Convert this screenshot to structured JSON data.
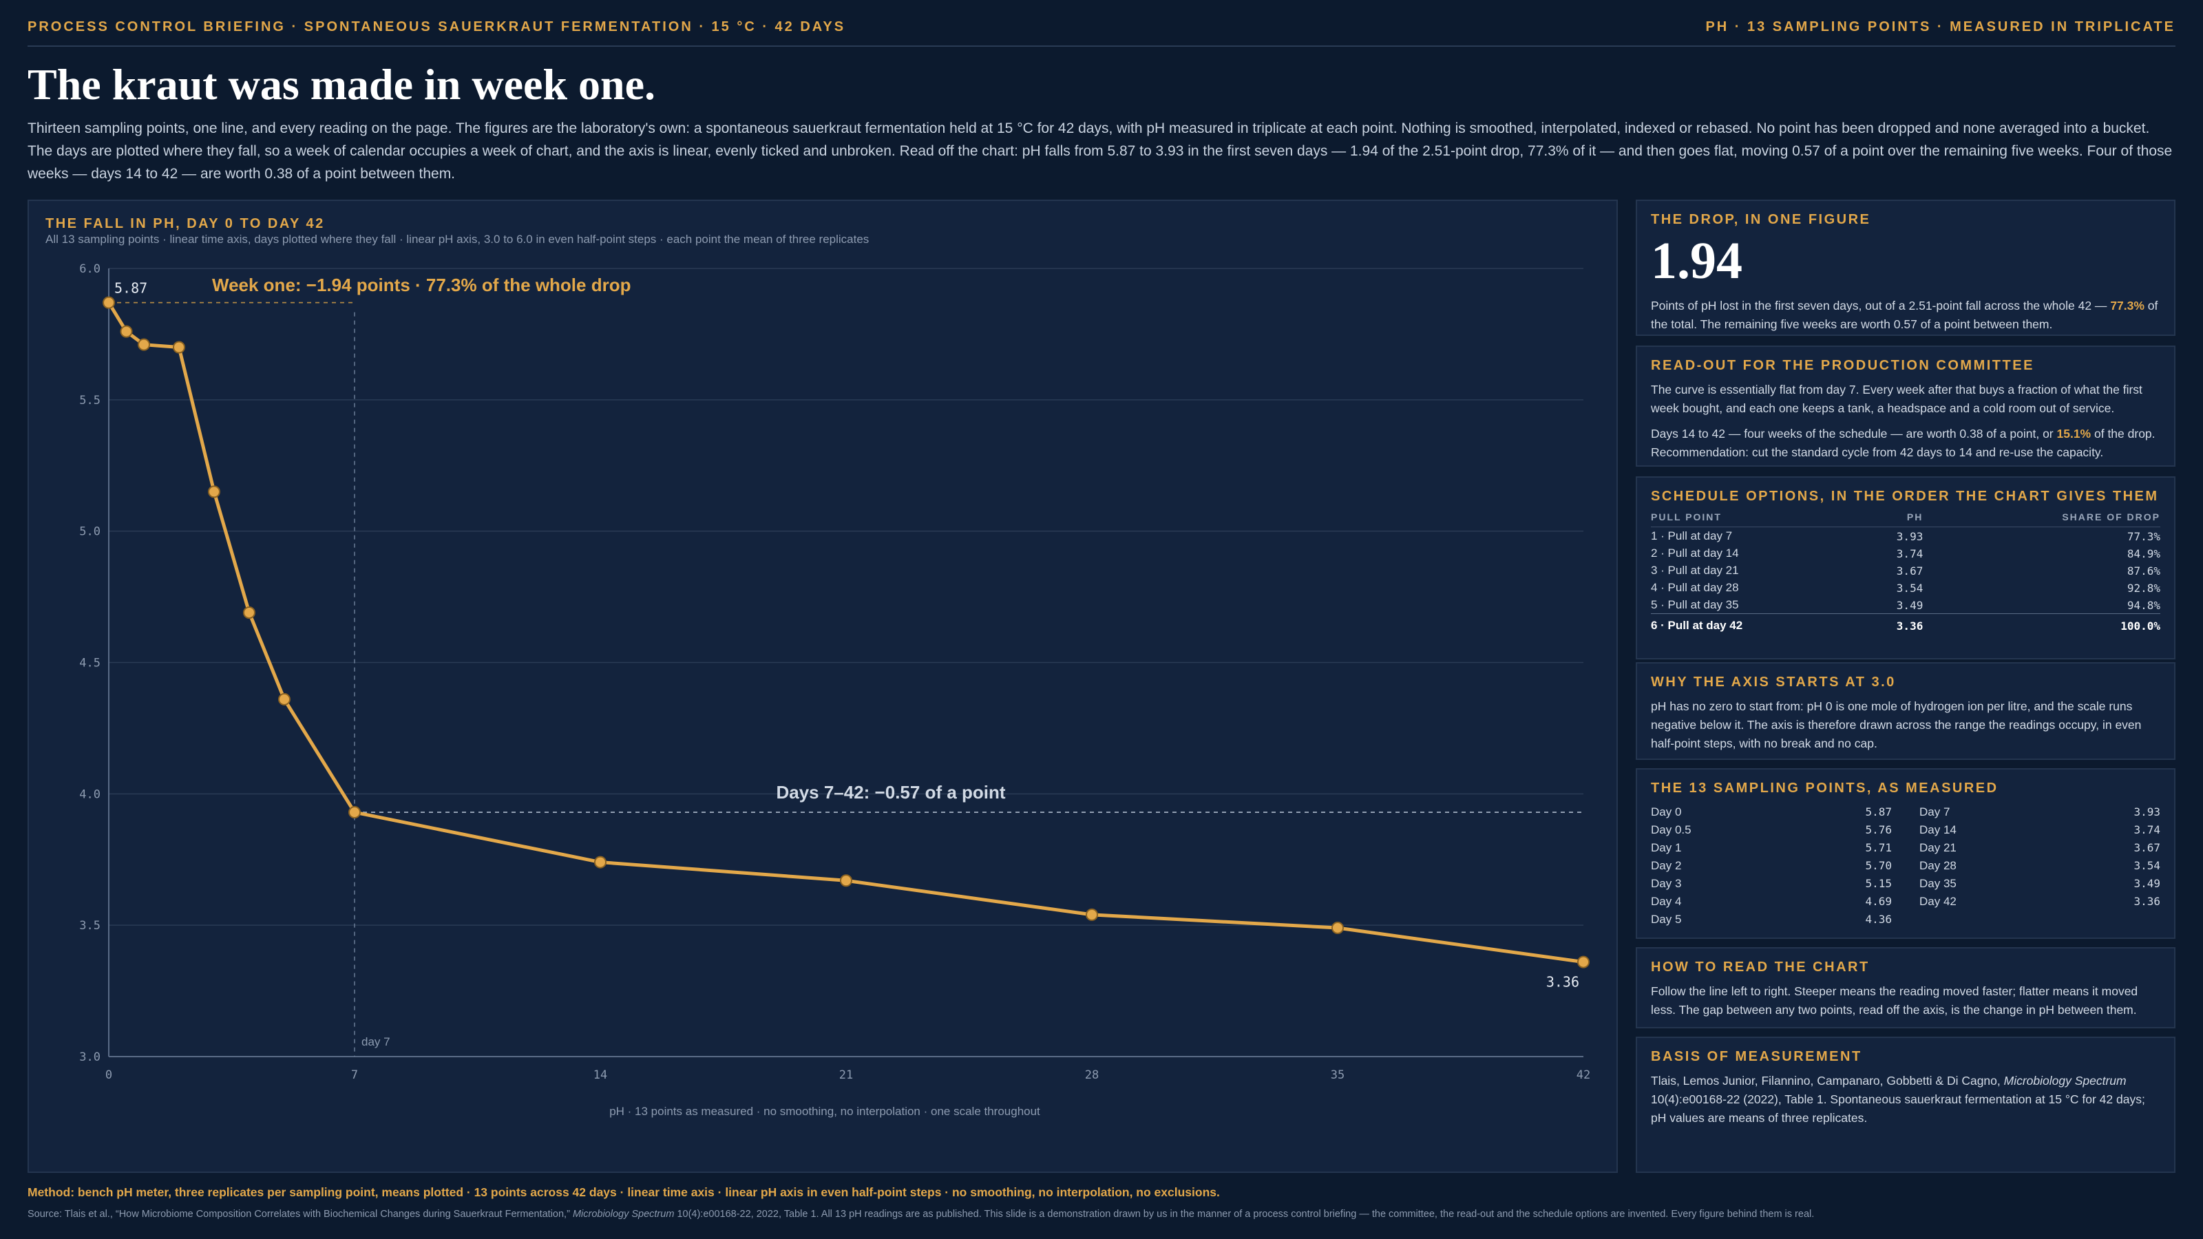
{
  "header": {
    "left": "PROCESS CONTROL BRIEFING · SPONTANEOUS SAUERKRAUT FERMENTATION · 15 °C · 42 DAYS",
    "right": "PH · 13 SAMPLING POINTS · MEASURED IN TRIPLICATE"
  },
  "headline": "The kraut was made in week one.",
  "lede": "Thirteen sampling points, one line, and every reading on the page. The figures are the laboratory's own: a spontaneous sauerkraut fermentation held at 15 °C for 42 days, with pH measured in triplicate at each point. Nothing is smoothed, interpolated, indexed or rebased. No point has been dropped and none averaged into a bucket. The days are plotted where they fall, so a week of calendar occupies a week of chart, and the axis is linear, evenly ticked and unbroken. Read off the chart: pH falls from 5.87 to 3.93 in the first seven days — 1.94 of the 2.51-point drop, 77.3% of it — and then goes flat, moving 0.57 of a point over the remaining five weeks. Four of those weeks — days 14 to 42 — are worth 0.38 of a point between them.",
  "chart_panel": {
    "title": "THE FALL IN PH, DAY 0 TO DAY 42",
    "subtitle": "All 13 sampling points · linear time axis, days plotted where they fall · linear pH axis, 3.0 to 6.0 in even half-point steps · each point the mean of three replicates"
  },
  "chart_data": {
    "type": "line",
    "x": [
      0,
      0.5,
      1,
      2,
      3,
      4,
      5,
      7,
      14,
      21,
      28,
      35,
      42
    ],
    "series": [
      {
        "values": [
          5.87,
          5.76,
          5.71,
          5.7,
          5.15,
          4.69,
          4.36,
          3.93,
          3.74,
          3.67,
          3.54,
          3.49,
          3.36
        ]
      }
    ],
    "xlim": [
      0,
      42
    ],
    "ylim": [
      3.0,
      6.0
    ],
    "x_ticks": [
      "0",
      "7",
      "14",
      "21",
      "28",
      "35",
      "42"
    ],
    "y_ticks": [
      "3.0",
      "3.5",
      "4.0",
      "4.5",
      "5.0",
      "5.5",
      "6.0"
    ],
    "grid": true,
    "marker_label": "day 7",
    "label_start": "5.87",
    "label_end": "3.36",
    "annotations": {
      "week_one": "Week one: −1.94 points · 77.3% of the whole drop",
      "days_7_42": "Days 7–42: −0.57 of a point"
    },
    "caption": "pH · 13 points as measured · no smoothing, no interpolation · one scale throughout",
    "line_color": "#e3a84a"
  },
  "cards": {
    "drop": {
      "title": "THE DROP, IN ONE FIGURE",
      "value": "1.94",
      "text_before": "Points of pH lost in the first seven days, out of a 2.51-point fall across the whole 42 — ",
      "highlight": "77.3%",
      "text_after": " of the total. The remaining five weeks are worth 0.57 of a point between them."
    },
    "readout": {
      "title": "READ-OUT FOR THE PRODUCTION COMMITTEE",
      "p1": "The curve is essentially flat from day 7. Every week after that buys a fraction of what the first week bought, and each one keeps a tank, a headspace and a cold room out of service.",
      "p2_before": "Days 14 to 42 — four weeks of the schedule — are worth 0.38 of a point, or ",
      "p2_highlight": "15.1%",
      "p2_after": " of the drop. Recommendation: cut the standard cycle from 42 days to 14 and re-use the capacity."
    },
    "schedule": {
      "title": "SCHEDULE OPTIONS, IN THE ORDER THE CHART GIVES THEM",
      "col_pull": "PULL POINT",
      "col_ph": "PH",
      "col_share": "SHARE OF DROP",
      "rows": [
        {
          "label": "1 · Pull at day 7",
          "ph": "3.93",
          "share": "77.3%"
        },
        {
          "label": "2 · Pull at day 14",
          "ph": "3.74",
          "share": "84.9%"
        },
        {
          "label": "3 · Pull at day 21",
          "ph": "3.67",
          "share": "87.6%"
        },
        {
          "label": "4 · Pull at day 28",
          "ph": "3.54",
          "share": "92.8%"
        },
        {
          "label": "5 · Pull at day 35",
          "ph": "3.49",
          "share": "94.8%"
        },
        {
          "label": "6 · Pull at day 42",
          "ph": "3.36",
          "share": "100.0%"
        }
      ]
    },
    "axis": {
      "title": "WHY THE AXIS STARTS AT 3.0",
      "text": "pH has no zero to start from: pH 0 is one mole of hydrogen ion per litre, and the scale runs negative below it. The axis is therefore drawn across the range the readings occupy, in even half-point steps, with no break and no cap."
    },
    "points": {
      "title": "THE 13 SAMPLING POINTS, AS MEASURED",
      "left": [
        {
          "day": "Day 0",
          "ph": "5.87"
        },
        {
          "day": "Day 0.5",
          "ph": "5.76"
        },
        {
          "day": "Day 1",
          "ph": "5.71"
        },
        {
          "day": "Day 2",
          "ph": "5.70"
        },
        {
          "day": "Day 3",
          "ph": "5.15"
        },
        {
          "day": "Day 4",
          "ph": "4.69"
        },
        {
          "day": "Day 5",
          "ph": "4.36"
        }
      ],
      "right": [
        {
          "day": "Day 7",
          "ph": "3.93"
        },
        {
          "day": "Day 14",
          "ph": "3.74"
        },
        {
          "day": "Day 21",
          "ph": "3.67"
        },
        {
          "day": "Day 28",
          "ph": "3.54"
        },
        {
          "day": "Day 35",
          "ph": "3.49"
        },
        {
          "day": "Day 42",
          "ph": "3.36"
        }
      ]
    },
    "howto": {
      "title": "HOW TO READ THE CHART",
      "text": "Follow the line left to right. Steeper means the reading moved faster; flatter means it moved less. The gap between any two points, read off the axis, is the change in pH between them."
    },
    "basis": {
      "title": "BASIS OF MEASUREMENT",
      "authors": "Tlais, Lemos Junior, Filannino, Campanaro, Gobbetti & Di Cagno, ",
      "journal": "Microbiology Spectrum",
      "rest": " 10(4):e00168-22 (2022), Table 1. Spontaneous sauerkraut fermentation at 15 °C for 42 days; pH values are means of three replicates."
    }
  },
  "footer": {
    "method": "Method: bench pH meter, three replicates per sampling point, means plotted · 13 points across 42 days · linear time axis · linear pH axis in even half-point steps · no smoothing, no interpolation, no exclusions.",
    "source_before": "Source: Tlais et al., “How Microbiome Composition Correlates with Biochemical Changes during Sauerkraut Fermentation,” ",
    "source_journal": "Microbiology Spectrum",
    "source_after": " 10(4):e00168-22, 2022, Table 1. All 13 pH readings are as published. This slide is a demonstration drawn by us in the manner of a process control briefing — the committee, the read-out and the schedule options are invented. Every figure behind them is real."
  }
}
